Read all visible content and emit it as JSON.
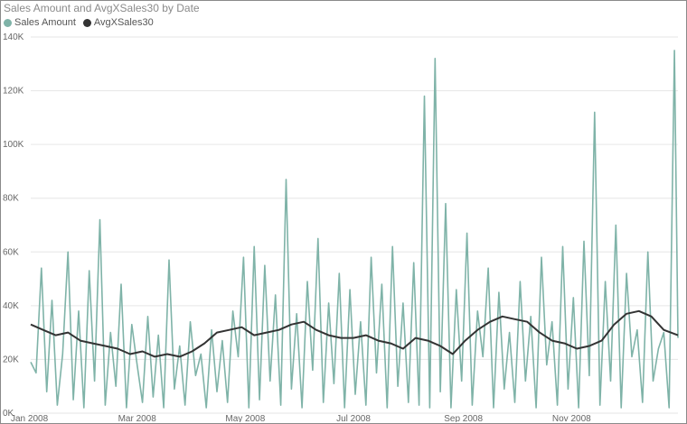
{
  "chart_data": {
    "type": "line",
    "title": "Sales Amount and AvgXSales30 by Date",
    "xlabel": "",
    "ylabel": "",
    "ylim": [
      0,
      140000
    ],
    "yticks": [
      "0K",
      "20K",
      "40K",
      "60K",
      "80K",
      "100K",
      "120K",
      "140K"
    ],
    "ytick_values": [
      0,
      20000,
      40000,
      60000,
      80000,
      100000,
      120000,
      140000
    ],
    "xlim": [
      "2008-01-01",
      "2008-12-31"
    ],
    "xticks": [
      "Jan 2008",
      "Mar 2008",
      "May 2008",
      "Jul 2008",
      "Sep 2008",
      "Nov 2008"
    ],
    "xtick_dates": [
      "2008-01-01",
      "2008-03-01",
      "2008-05-01",
      "2008-07-01",
      "2008-09-01",
      "2008-11-01"
    ],
    "grid": true,
    "legend": "top-left",
    "series": [
      {
        "name": "Sales Amount",
        "color": "#7fb3a8",
        "x": [
          "2008-01-01",
          "2008-01-04",
          "2008-01-07",
          "2008-01-10",
          "2008-01-13",
          "2008-01-16",
          "2008-01-19",
          "2008-01-22",
          "2008-01-25",
          "2008-01-28",
          "2008-01-31",
          "2008-02-03",
          "2008-02-06",
          "2008-02-09",
          "2008-02-12",
          "2008-02-15",
          "2008-02-18",
          "2008-02-21",
          "2008-02-24",
          "2008-02-27",
          "2008-03-01",
          "2008-03-04",
          "2008-03-07",
          "2008-03-10",
          "2008-03-13",
          "2008-03-16",
          "2008-03-19",
          "2008-03-22",
          "2008-03-25",
          "2008-03-28",
          "2008-03-31",
          "2008-04-03",
          "2008-04-06",
          "2008-04-09",
          "2008-04-12",
          "2008-04-15",
          "2008-04-18",
          "2008-04-21",
          "2008-04-24",
          "2008-04-27",
          "2008-04-30",
          "2008-05-03",
          "2008-05-06",
          "2008-05-09",
          "2008-05-12",
          "2008-05-15",
          "2008-05-18",
          "2008-05-21",
          "2008-05-24",
          "2008-05-27",
          "2008-05-30",
          "2008-06-02",
          "2008-06-05",
          "2008-06-08",
          "2008-06-11",
          "2008-06-14",
          "2008-06-17",
          "2008-06-20",
          "2008-06-23",
          "2008-06-26",
          "2008-06-29",
          "2008-07-02",
          "2008-07-05",
          "2008-07-08",
          "2008-07-11",
          "2008-07-14",
          "2008-07-17",
          "2008-07-20",
          "2008-07-23",
          "2008-07-26",
          "2008-07-29",
          "2008-08-01",
          "2008-08-04",
          "2008-08-07",
          "2008-08-10",
          "2008-08-13",
          "2008-08-16",
          "2008-08-19",
          "2008-08-22",
          "2008-08-25",
          "2008-08-28",
          "2008-08-31",
          "2008-09-03",
          "2008-09-06",
          "2008-09-09",
          "2008-09-12",
          "2008-09-15",
          "2008-09-18",
          "2008-09-21",
          "2008-09-24",
          "2008-09-27",
          "2008-09-30",
          "2008-10-03",
          "2008-10-06",
          "2008-10-09",
          "2008-10-12",
          "2008-10-15",
          "2008-10-18",
          "2008-10-21",
          "2008-10-24",
          "2008-10-27",
          "2008-10-30",
          "2008-11-02",
          "2008-11-05",
          "2008-11-08",
          "2008-11-11",
          "2008-11-14",
          "2008-11-17",
          "2008-11-20",
          "2008-11-23",
          "2008-11-26",
          "2008-11-29",
          "2008-12-02",
          "2008-12-05",
          "2008-12-08",
          "2008-12-11",
          "2008-12-14",
          "2008-12-17",
          "2008-12-20",
          "2008-12-23",
          "2008-12-26",
          "2008-12-29",
          "2008-12-31"
        ],
        "values": [
          19000,
          15000,
          54000,
          8000,
          42000,
          3000,
          22000,
          60000,
          5000,
          38000,
          2000,
          53000,
          12000,
          72000,
          3000,
          30000,
          10000,
          48000,
          2000,
          33000,
          18000,
          4000,
          36000,
          6000,
          29000,
          2000,
          57000,
          9000,
          25000,
          3000,
          34000,
          14000,
          22000,
          2000,
          31000,
          8000,
          27000,
          4000,
          38000,
          21000,
          58000,
          2000,
          62000,
          5000,
          55000,
          12000,
          44000,
          3000,
          87000,
          9000,
          37000,
          2000,
          49000,
          16000,
          65000,
          4000,
          41000,
          11000,
          52000,
          2000,
          46000,
          7000,
          34000,
          3000,
          58000,
          15000,
          48000,
          2000,
          62000,
          10000,
          41000,
          4000,
          56000,
          3000,
          118000,
          2000,
          132000,
          8000,
          78000,
          2000,
          46000,
          12000,
          67000,
          3000,
          38000,
          21000,
          54000,
          2000,
          45000,
          9000,
          30000,
          4000,
          49000,
          12000,
          36000,
          2000,
          58000,
          18000,
          34000,
          3000,
          62000,
          9000,
          43000,
          2000,
          64000,
          14000,
          112000,
          3000,
          49000,
          12000,
          70000,
          2000,
          52000,
          21000,
          31000,
          4000,
          60000,
          12000,
          24000,
          30000,
          2000,
          135000,
          28000
        ]
      },
      {
        "name": "AvgXSales30",
        "color": "#333333",
        "x": [
          "2008-01-01",
          "2008-01-08",
          "2008-01-15",
          "2008-01-22",
          "2008-01-29",
          "2008-02-05",
          "2008-02-12",
          "2008-02-19",
          "2008-02-26",
          "2008-03-04",
          "2008-03-11",
          "2008-03-18",
          "2008-03-25",
          "2008-04-01",
          "2008-04-08",
          "2008-04-15",
          "2008-04-22",
          "2008-04-29",
          "2008-05-06",
          "2008-05-13",
          "2008-05-20",
          "2008-05-27",
          "2008-06-03",
          "2008-06-10",
          "2008-06-17",
          "2008-06-24",
          "2008-07-01",
          "2008-07-08",
          "2008-07-15",
          "2008-07-22",
          "2008-07-29",
          "2008-08-05",
          "2008-08-12",
          "2008-08-19",
          "2008-08-26",
          "2008-09-02",
          "2008-09-09",
          "2008-09-16",
          "2008-09-23",
          "2008-09-30",
          "2008-10-07",
          "2008-10-14",
          "2008-10-21",
          "2008-10-28",
          "2008-11-04",
          "2008-11-11",
          "2008-11-18",
          "2008-11-25",
          "2008-12-02",
          "2008-12-09",
          "2008-12-16",
          "2008-12-23",
          "2008-12-31"
        ],
        "values": [
          33000,
          31000,
          29000,
          30000,
          27000,
          26000,
          25000,
          24000,
          22000,
          23000,
          21000,
          22000,
          21000,
          23000,
          26000,
          30000,
          31000,
          32000,
          29000,
          30000,
          31000,
          33000,
          34000,
          31000,
          29000,
          28000,
          28000,
          29000,
          27000,
          26000,
          24000,
          28000,
          27000,
          25000,
          22000,
          27000,
          31000,
          34000,
          36000,
          35000,
          34000,
          30000,
          27000,
          26000,
          24000,
          25000,
          27000,
          33000,
          37000,
          38000,
          36000,
          31000,
          29000
        ]
      }
    ]
  }
}
